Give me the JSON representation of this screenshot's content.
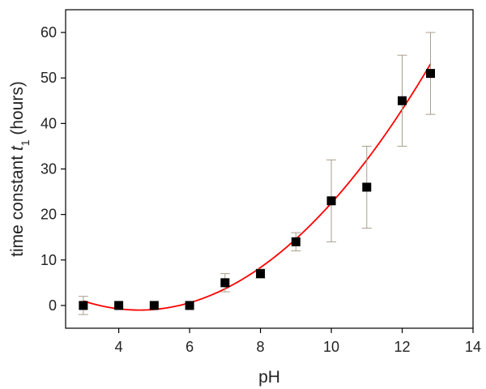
{
  "chart_data": {
    "type": "scatter",
    "title": "",
    "xlabel": "pH",
    "ylabel": {
      "prefix": "time constant ",
      "symbol": "t",
      "subscript": "1",
      "suffix": " (hours)"
    },
    "xlim": [
      2.5,
      14
    ],
    "ylim": [
      -5,
      65
    ],
    "xticks": [
      4,
      6,
      8,
      10,
      12,
      14
    ],
    "yticks": [
      0,
      10,
      20,
      30,
      40,
      50,
      60
    ],
    "grid": false,
    "series": [
      {
        "marker": "square",
        "color": "#000000",
        "points": [
          {
            "x": 3,
            "y": 0,
            "err": 2
          },
          {
            "x": 4,
            "y": 0,
            "err": 0
          },
          {
            "x": 5,
            "y": 0,
            "err": 0
          },
          {
            "x": 6,
            "y": 0,
            "err": 0
          },
          {
            "x": 7,
            "y": 5,
            "err": 2
          },
          {
            "x": 8,
            "y": 7,
            "err": 1
          },
          {
            "x": 9,
            "y": 14,
            "err": 2
          },
          {
            "x": 10,
            "y": 23,
            "err": 9
          },
          {
            "x": 11,
            "y": 26,
            "err": 9
          },
          {
            "x": 12,
            "y": 45,
            "err": 10
          },
          {
            "x": 12.8,
            "y": 51,
            "err": 9
          }
        ]
      }
    ],
    "fit": {
      "type": "quadratic",
      "color": "#ff0000",
      "x_range": [
        3,
        12.8
      ],
      "points": [
        {
          "x": 3,
          "y": 1
        },
        {
          "x": 4.7,
          "y": -1
        },
        {
          "x": 10,
          "y": 22.5
        },
        {
          "x": 12.8,
          "y": 51
        }
      ]
    },
    "colors": {
      "axis": "#000000",
      "errorbar": "#a89f8c",
      "fit": "#ff0000",
      "marker": "#000000"
    }
  }
}
